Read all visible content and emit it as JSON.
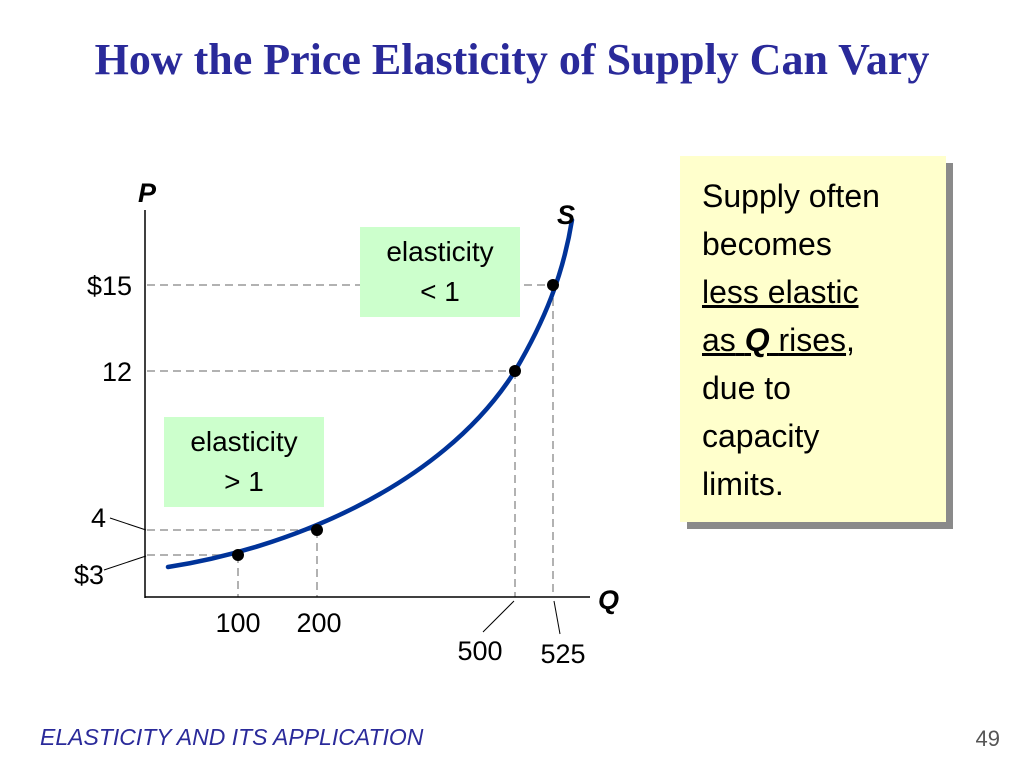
{
  "slide": {
    "title": "How the Price Elasticity of Supply Can Vary",
    "footer": "ELASTICITY AND ITS APPLICATION",
    "page_number": "49"
  },
  "note": {
    "line1": "Supply often",
    "line2": "becomes",
    "line3": "less elastic",
    "line4_a": "as",
    "line4_q": "Q",
    "line4_b": "rises",
    "line4_c": ",",
    "line5": "due to",
    "line6": "capacity",
    "line7": "limits."
  },
  "boxes": {
    "upper_line1": "elasticity",
    "upper_line2": "< 1",
    "lower_line1": "elasticity",
    "lower_line2": "> 1"
  },
  "colors": {
    "title": "#2a2a9a",
    "curve": "#003399",
    "box_fill": "#ccffcc",
    "note_fill": "#ffffcc",
    "guide": "#999999"
  },
  "chart_data": {
    "type": "line",
    "xlabel": "Q",
    "ylabel": "P",
    "series": [
      {
        "name": "S",
        "x": [
          100,
          200,
          500,
          525
        ],
        "y": [
          3,
          4,
          12,
          15
        ]
      }
    ],
    "x_ticks": [
      "100",
      "200",
      "500",
      "525"
    ],
    "y_ticks": [
      "$3",
      "4",
      "12",
      "$15"
    ],
    "xlim": [
      0,
      550
    ],
    "ylim": [
      0,
      17
    ]
  }
}
